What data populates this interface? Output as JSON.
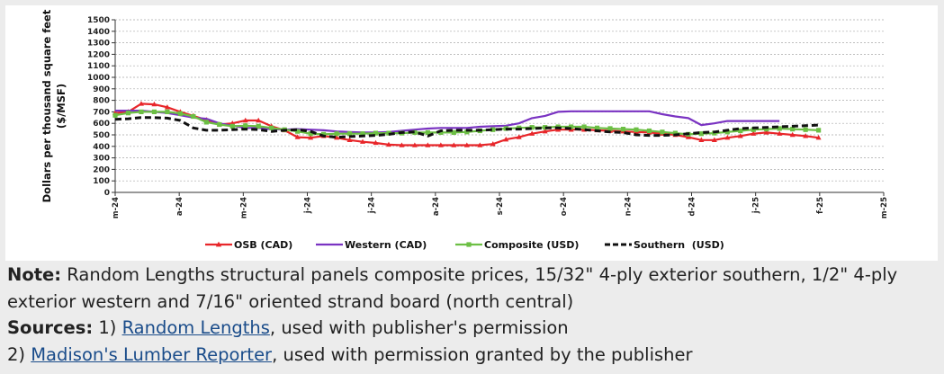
{
  "chart_data": {
    "type": "line",
    "ylabel": "Dollars per thousand square feet\n($/MSF)",
    "ylim": [
      0,
      1500
    ],
    "yticks": [
      0,
      100,
      200,
      300,
      400,
      500,
      600,
      700,
      800,
      900,
      1000,
      1100,
      1200,
      1300,
      1400,
      1500
    ],
    "x_ticks": [
      "m-24",
      "a-24",
      "m-24",
      "j-24",
      "j-24",
      "a-24",
      "s-24",
      "o-24",
      "n-24",
      "d-24",
      "j-25",
      "f-25",
      "m-25"
    ],
    "grid": true,
    "legend_position": "bottom",
    "x": [
      0,
      1,
      2,
      3,
      4,
      5,
      6,
      7,
      8,
      9,
      10,
      11,
      12,
      13,
      14,
      15,
      16,
      17,
      18,
      19,
      20,
      21,
      22,
      23,
      24,
      25,
      26,
      27,
      28,
      29,
      30,
      31,
      32,
      33,
      34,
      35,
      36,
      37,
      38,
      39,
      40,
      41,
      42,
      43,
      44,
      45,
      46,
      47,
      48,
      49,
      50,
      51,
      52,
      53,
      54,
      55,
      56,
      57,
      58,
      59
    ],
    "series": [
      {
        "name": "OSB (CAD)",
        "color": "#e8262a",
        "marker": "triangle",
        "dash": "solid",
        "values": [
          690,
          700,
          770,
          765,
          740,
          700,
          665,
          630,
          590,
          600,
          625,
          625,
          575,
          540,
          480,
          475,
          490,
          475,
          455,
          440,
          430,
          415,
          410,
          410,
          410,
          410,
          410,
          410,
          410,
          420,
          460,
          480,
          510,
          530,
          545,
          545,
          545,
          540,
          535,
          530,
          525,
          520,
          510,
          500,
          480,
          455,
          455,
          475,
          490,
          510,
          520,
          510,
          500,
          490,
          475,
          null,
          null,
          null,
          null,
          null
        ]
      },
      {
        "name": "Western (CAD)",
        "color": "#7a33c2",
        "marker": "none",
        "dash": "solid",
        "values": [
          710,
          710,
          710,
          700,
          690,
          670,
          650,
          640,
          600,
          580,
          560,
          560,
          550,
          545,
          550,
          545,
          540,
          530,
          525,
          520,
          520,
          525,
          535,
          545,
          555,
          560,
          560,
          560,
          570,
          575,
          580,
          600,
          645,
          665,
          700,
          705,
          705,
          705,
          705,
          705,
          705,
          705,
          680,
          660,
          645,
          585,
          600,
          620,
          620,
          620,
          620,
          620,
          null,
          null,
          null,
          null,
          null,
          null,
          null,
          null
        ]
      },
      {
        "name": "Composite (USD)",
        "color": "#6cbf44",
        "marker": "square",
        "dash": "solid",
        "values": [
          670,
          690,
          700,
          700,
          700,
          685,
          660,
          610,
          590,
          575,
          580,
          575,
          560,
          545,
          530,
          510,
          505,
          510,
          510,
          510,
          515,
          515,
          515,
          520,
          520,
          520,
          520,
          525,
          535,
          545,
          555,
          560,
          565,
          565,
          570,
          570,
          570,
          560,
          555,
          550,
          545,
          535,
          525,
          515,
          505,
          510,
          515,
          525,
          535,
          545,
          550,
          555,
          550,
          545,
          540,
          null,
          null,
          null,
          null,
          null
        ]
      },
      {
        "name": "Southern  (USD)",
        "color": "#111111",
        "marker": "none",
        "dash": "dashed",
        "values": [
          635,
          640,
          650,
          650,
          645,
          625,
          560,
          540,
          540,
          545,
          550,
          545,
          530,
          540,
          545,
          530,
          490,
          480,
          485,
          490,
          495,
          505,
          520,
          525,
          490,
          535,
          540,
          540,
          540,
          545,
          550,
          550,
          555,
          560,
          560,
          555,
          545,
          535,
          525,
          520,
          500,
          495,
          495,
          500,
          510,
          520,
          525,
          540,
          555,
          560,
          565,
          570,
          575,
          580,
          585,
          null,
          null,
          null,
          null,
          null
        ]
      }
    ]
  },
  "caption": {
    "note_label": "Note:",
    "note_text": " Random Lengths structural panels composite prices, 15/32\" 4-ply exterior southern, 1/2\" 4-ply exterior western and 7/16\" oriented strand board (north central)",
    "sources_label": "Sources:",
    "sources_prefix": " 1) ",
    "source1_link": "Random Lengths",
    "source1_suffix": ", used with publisher's permission",
    "source2_prefix": "2) ",
    "source2_link": "Madison's Lumber Reporter",
    "source2_suffix": ", used with permission granted by the publisher"
  }
}
